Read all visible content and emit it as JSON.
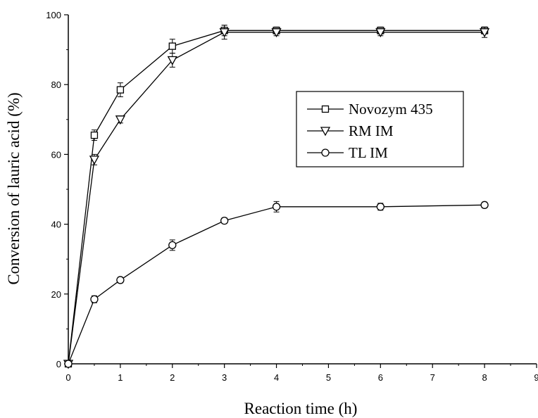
{
  "chart_data": {
    "type": "line",
    "title": "",
    "xlabel": "Reaction time (h)",
    "ylabel": "Conversion of lauric acid (%)",
    "xlim": [
      0,
      9
    ],
    "ylim": [
      0,
      100
    ],
    "xticks": [
      0,
      1,
      2,
      3,
      4,
      5,
      6,
      7,
      8,
      9
    ],
    "yticks": [
      0,
      20,
      40,
      60,
      80,
      100
    ],
    "grid": false,
    "legend_position": "center-right",
    "series": [
      {
        "name": "Novozym 435",
        "marker": "square",
        "x": [
          0,
          0.5,
          1,
          2,
          3,
          4,
          6,
          8
        ],
        "y": [
          0,
          65.5,
          78.5,
          91,
          95.5,
          95.5,
          95.5,
          95.5
        ],
        "err": [
          0,
          1.5,
          2,
          2,
          1.5,
          1,
          1,
          1
        ]
      },
      {
        "name": "RM IM",
        "marker": "triangle-down",
        "x": [
          0,
          0.5,
          1,
          2,
          3,
          4,
          6,
          8
        ],
        "y": [
          0,
          58.5,
          70,
          87,
          95,
          95,
          95,
          95
        ],
        "err": [
          0,
          1.5,
          1,
          2,
          2,
          1,
          1,
          1.5
        ]
      },
      {
        "name": "TL IM",
        "marker": "circle",
        "x": [
          0,
          0.5,
          1,
          2,
          3,
          4,
          6,
          8
        ],
        "y": [
          0,
          18.5,
          24,
          34,
          41,
          45,
          45,
          45.5
        ],
        "err": [
          0,
          1,
          0.8,
          1.5,
          0.8,
          1.5,
          1,
          0.8
        ]
      }
    ]
  }
}
